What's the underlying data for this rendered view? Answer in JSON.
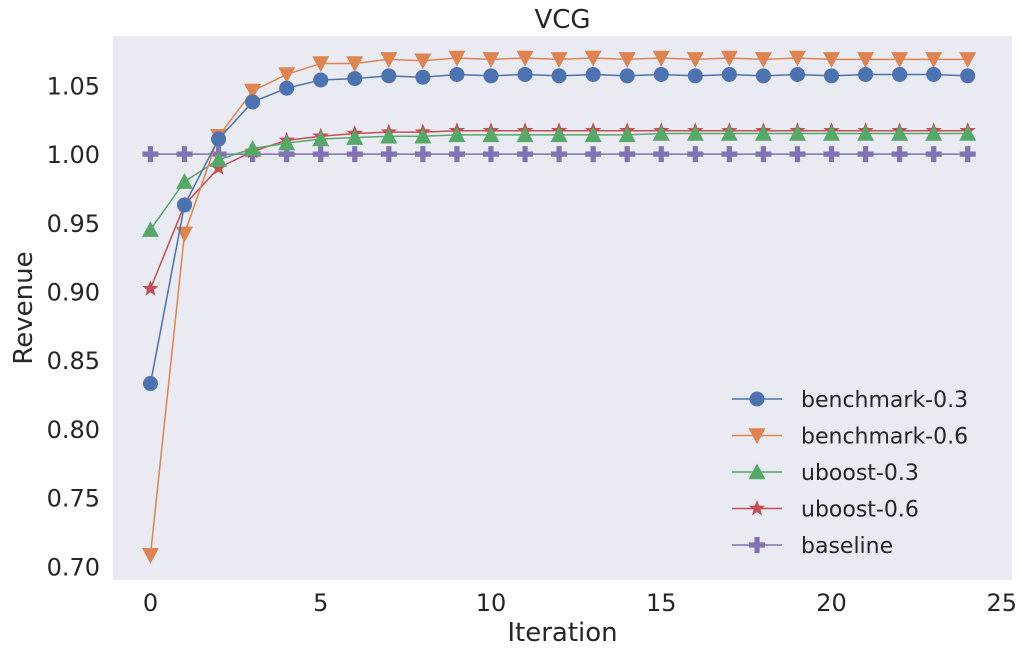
{
  "chart_data": {
    "type": "line",
    "title": "VCG",
    "xlabel": "Iteration",
    "ylabel": "Revenue",
    "xlim": [
      -1.1,
      25.3
    ],
    "ylim": [
      0.69,
      1.086
    ],
    "xticks": [
      "0",
      "5",
      "10",
      "15",
      "20",
      "25"
    ],
    "yticks": [
      "0.70",
      "0.75",
      "0.80",
      "0.85",
      "0.90",
      "0.95",
      "1.00",
      "1.05"
    ],
    "grid": false,
    "legend_position": "lower-right",
    "x": [
      0,
      1,
      2,
      3,
      4,
      5,
      6,
      7,
      8,
      9,
      10,
      11,
      12,
      13,
      14,
      15,
      16,
      17,
      18,
      19,
      20,
      21,
      22,
      23,
      24
    ],
    "series": [
      {
        "name": "benchmark-0.3",
        "color": "#4c72b0",
        "marker": "circle",
        "values": [
          0.833,
          0.963,
          1.011,
          1.038,
          1.048,
          1.054,
          1.055,
          1.057,
          1.056,
          1.058,
          1.057,
          1.058,
          1.057,
          1.058,
          1.057,
          1.058,
          1.057,
          1.058,
          1.057,
          1.058,
          1.057,
          1.058,
          1.058,
          1.058,
          1.057
        ]
      },
      {
        "name": "benchmark-0.6",
        "color": "#dd8452",
        "marker": "triangle-down",
        "values": [
          0.708,
          0.942,
          1.013,
          1.046,
          1.058,
          1.066,
          1.066,
          1.069,
          1.068,
          1.07,
          1.069,
          1.07,
          1.069,
          1.07,
          1.069,
          1.07,
          1.069,
          1.07,
          1.069,
          1.07,
          1.069,
          1.069,
          1.069,
          1.069,
          1.069
        ]
      },
      {
        "name": "uboost-0.3",
        "color": "#55a868",
        "marker": "triangle-up",
        "values": [
          0.945,
          0.98,
          0.996,
          1.004,
          1.008,
          1.011,
          1.012,
          1.013,
          1.013,
          1.014,
          1.014,
          1.014,
          1.014,
          1.014,
          1.014,
          1.015,
          1.015,
          1.015,
          1.015,
          1.015,
          1.015,
          1.015,
          1.015,
          1.015,
          1.015
        ]
      },
      {
        "name": "uboost-0.6",
        "color": "#c44e52",
        "marker": "star",
        "values": [
          0.902,
          0.963,
          0.99,
          1.002,
          1.01,
          1.013,
          1.015,
          1.016,
          1.016,
          1.017,
          1.017,
          1.017,
          1.017,
          1.017,
          1.017,
          1.017,
          1.017,
          1.017,
          1.017,
          1.017,
          1.017,
          1.017,
          1.017,
          1.017,
          1.017
        ]
      },
      {
        "name": "baseline",
        "color": "#8172b3",
        "marker": "plus",
        "values": [
          1.0,
          1.0,
          1.0,
          1.0,
          1.0,
          1.0,
          1.0,
          1.0,
          1.0,
          1.0,
          1.0,
          1.0,
          1.0,
          1.0,
          1.0,
          1.0,
          1.0,
          1.0,
          1.0,
          1.0,
          1.0,
          1.0,
          1.0,
          1.0,
          1.0
        ]
      }
    ]
  }
}
